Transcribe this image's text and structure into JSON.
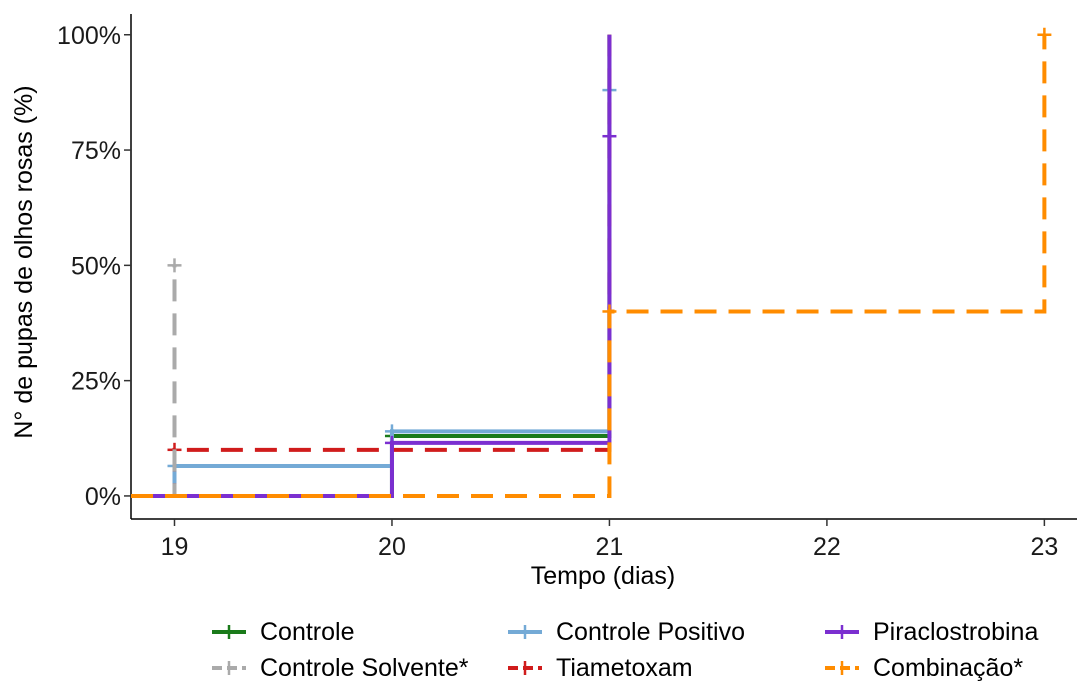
{
  "chart_data": {
    "type": "line",
    "title": "",
    "xlabel": "Tempo (dias)",
    "ylabel": "N° de pupas de olhos rosas (%)",
    "xlim": [
      18.8,
      23.15
    ],
    "ylim": [
      -0.05,
      1.045
    ],
    "x_ticks": [
      19,
      20,
      21,
      22,
      23
    ],
    "x_tick_labels": [
      "19",
      "20",
      "21",
      "22",
      "23"
    ],
    "y_ticks": [
      0,
      0.25,
      0.5,
      0.75,
      1.0
    ],
    "y_tick_labels": [
      "0%",
      "25%",
      "50%",
      "75%",
      "100%"
    ],
    "grid": false,
    "step": true,
    "legend_position": "bottom",
    "series": [
      {
        "name": "Controle",
        "color": "#1a7a1a",
        "dashed": false,
        "x": [
          18.8,
          19,
          20,
          21,
          21
        ],
        "y": [
          0,
          0,
          0.13,
          0.13,
          1.0
        ],
        "censor": [
          [
            20,
            0.13
          ]
        ]
      },
      {
        "name": "Controle Positivo",
        "color": "#74aad6",
        "dashed": false,
        "x": [
          18.8,
          19,
          20,
          21,
          21
        ],
        "y": [
          0,
          0.065,
          0.14,
          0.14,
          1.0
        ],
        "censor": [
          [
            19,
            0.065
          ],
          [
            20,
            0.14
          ],
          [
            21,
            0.88
          ]
        ]
      },
      {
        "name": "Piraclostrobina",
        "color": "#7b2fd0",
        "dashed": false,
        "x": [
          18.8,
          19,
          20,
          21,
          21
        ],
        "y": [
          0,
          0,
          0.115,
          0.115,
          1.0
        ],
        "censor": [
          [
            20,
            0.115
          ],
          [
            21,
            0.78
          ]
        ]
      },
      {
        "name": "Controle Solvente*",
        "color": "#aaaaaa",
        "dashed": true,
        "x": [
          18.8,
          19,
          19
        ],
        "y": [
          0,
          0,
          0.5
        ],
        "censor": [
          [
            19,
            0.5
          ]
        ]
      },
      {
        "name": "Tiametoxam",
        "color": "#d01c1c",
        "dashed": true,
        "x": [
          18.8,
          19,
          20,
          21,
          21
        ],
        "y": [
          0,
          0.1,
          0.1,
          0.1,
          1.0
        ],
        "censor": [
          [
            19,
            0.1
          ]
        ]
      },
      {
        "name": "Combinação*",
        "color": "#ff8c00",
        "dashed": true,
        "x": [
          18.8,
          19,
          20,
          21,
          22,
          23,
          23
        ],
        "y": [
          0,
          0,
          0,
          0.4,
          0.4,
          0.4,
          1.0
        ],
        "censor": [
          [
            21,
            0.4
          ],
          [
            23,
            1.0
          ]
        ]
      }
    ]
  }
}
